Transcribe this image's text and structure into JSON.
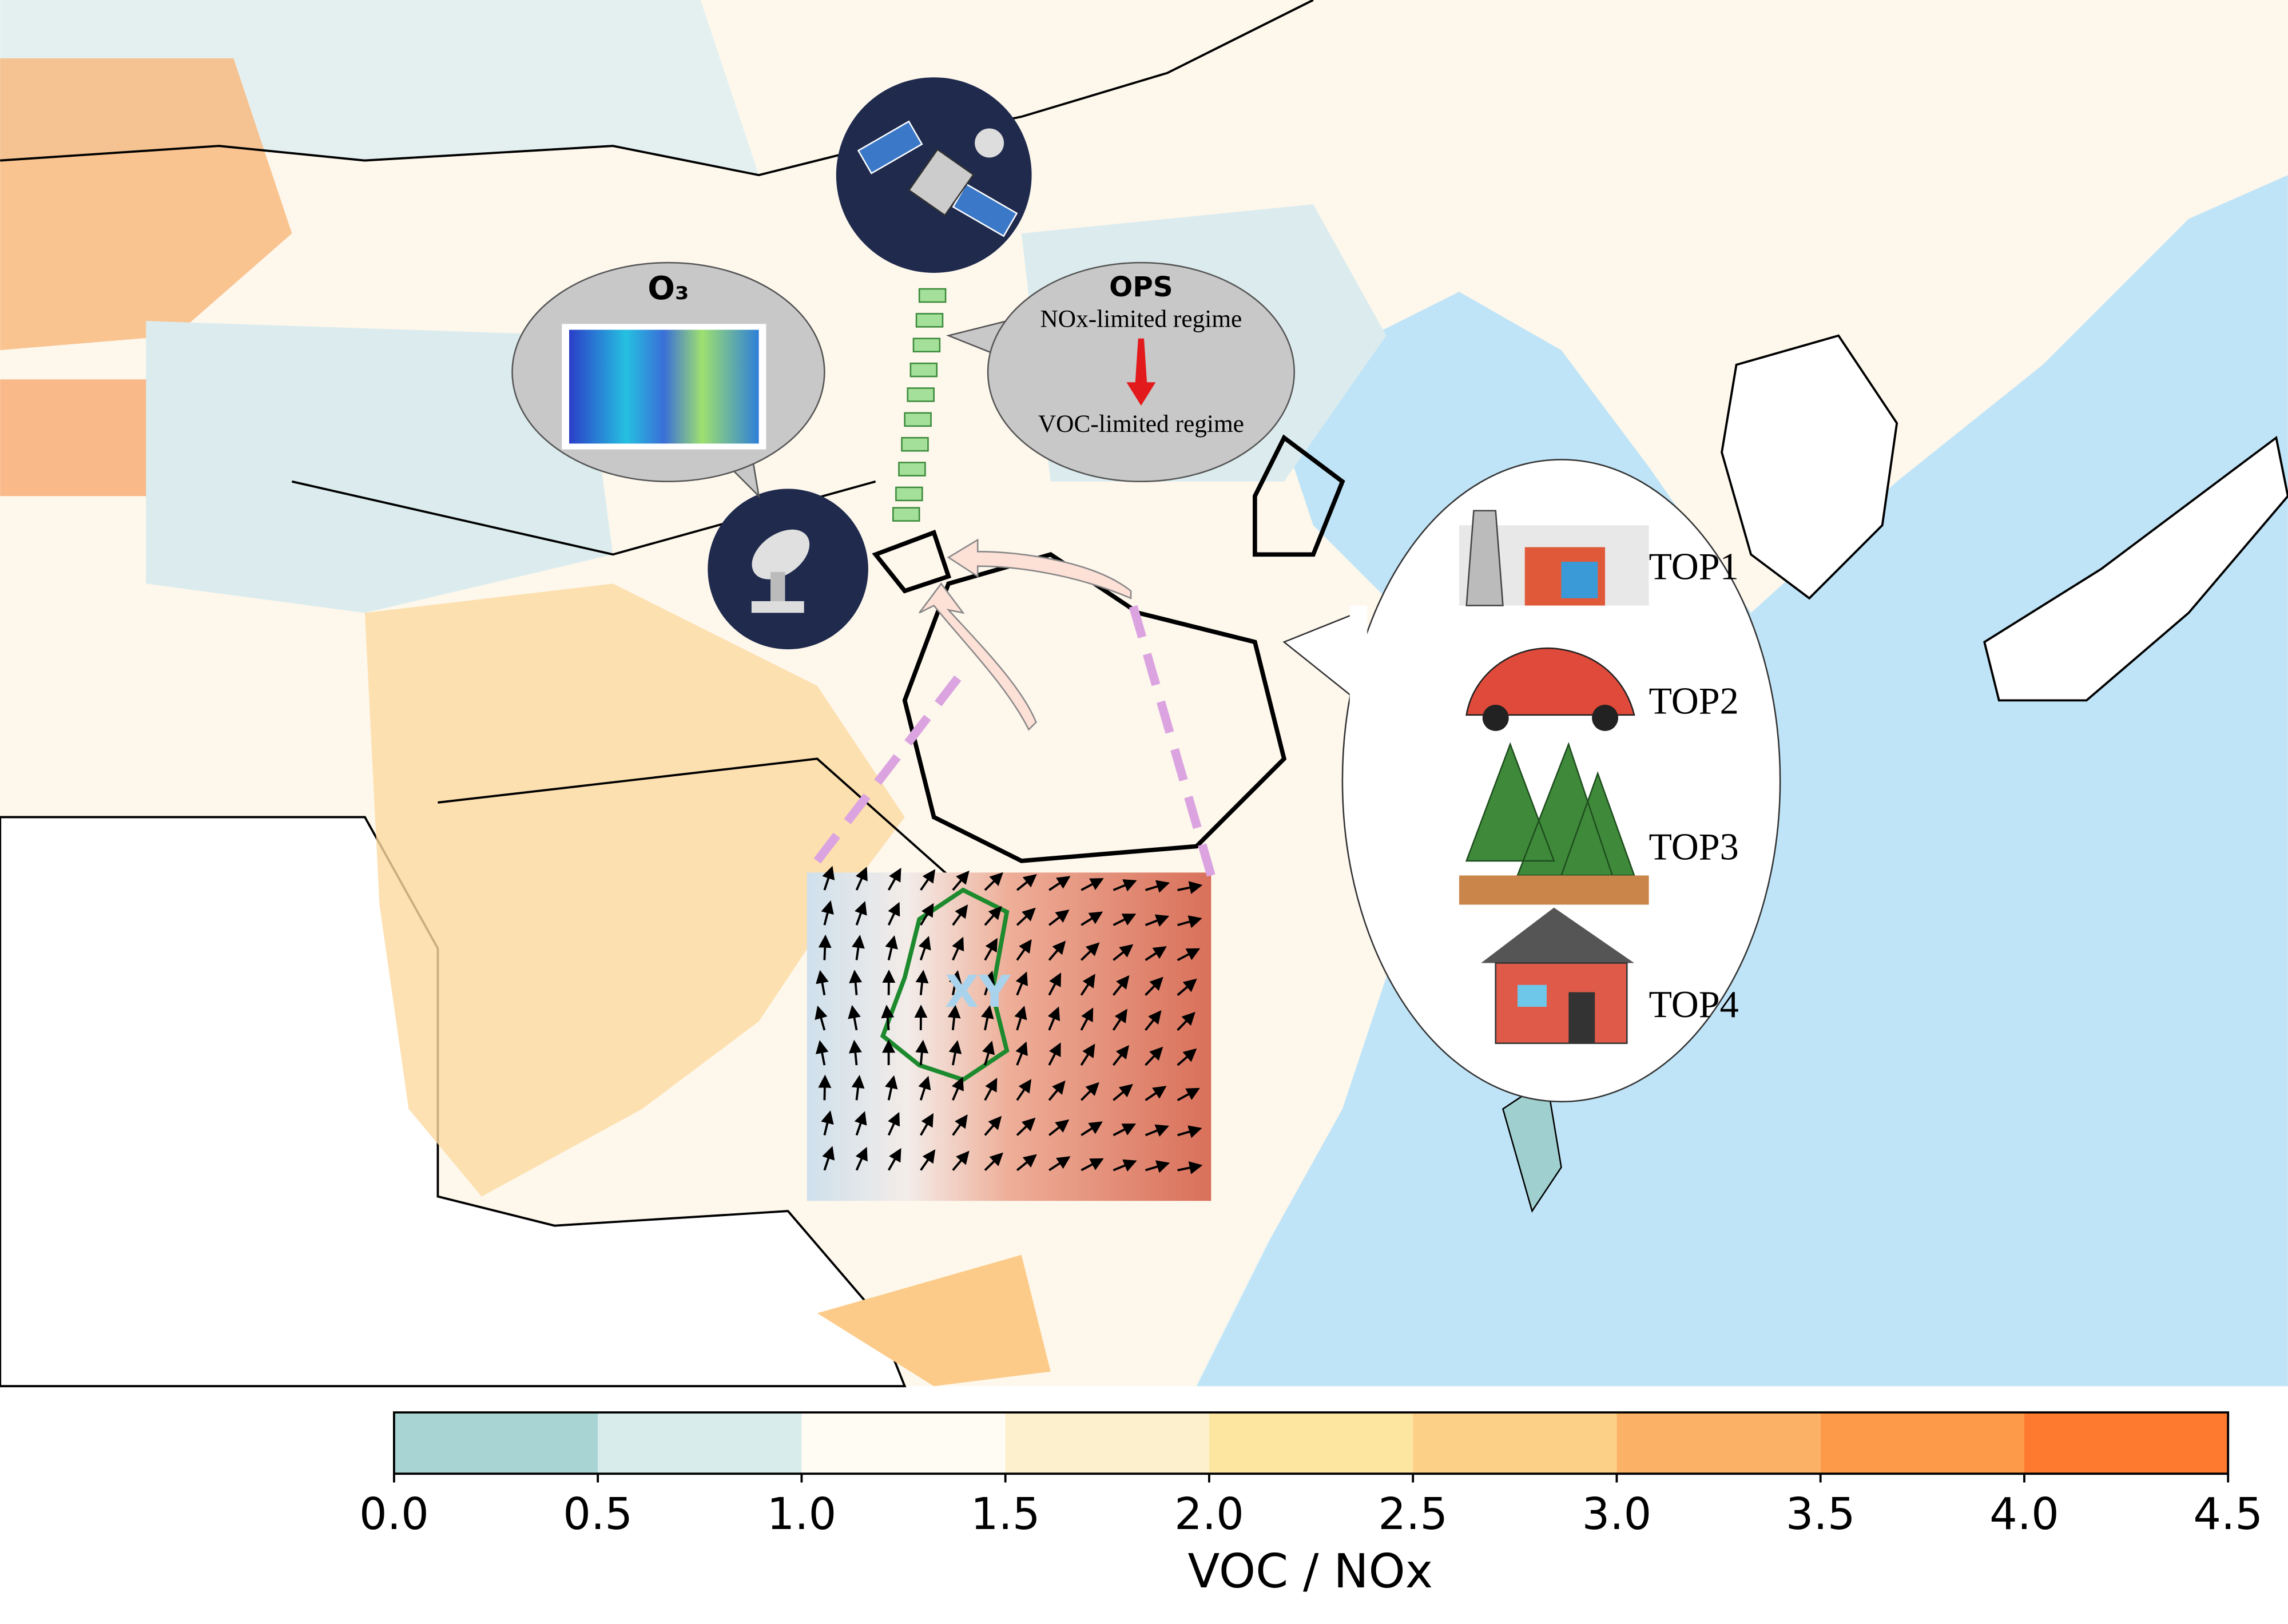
{
  "callouts": {
    "o3": "O₃",
    "ops_title": "OPS",
    "ops_from": "NOx-limited regime",
    "ops_to": "VOC-limited regime",
    "wind_label": "XY"
  },
  "sources": [
    "TOP1",
    "TOP2",
    "TOP3",
    "TOP4"
  ],
  "colorbar": {
    "label": "VOC / NOx",
    "ticks": [
      {
        "value": 0,
        "label": "0.0"
      },
      {
        "value": 0.5,
        "label": "0.5"
      },
      {
        "value": 1,
        "label": "1.0"
      },
      {
        "value": 1.5,
        "label": "1.5"
      },
      {
        "value": 2,
        "label": "2.0"
      },
      {
        "value": 2.5,
        "label": "2.5"
      },
      {
        "value": 3,
        "label": "3.0"
      },
      {
        "value": 3.5,
        "label": "3.5"
      },
      {
        "value": 4,
        "label": "4.0"
      },
      {
        "value": 4.5,
        "label": "4.5"
      }
    ],
    "colors": [
      "#a8d5d3",
      "#d9ecec",
      "#fffcf3",
      "#fdf0cc",
      "#fde6a0",
      "#fdd088",
      "#fcb266",
      "#fc9a4a",
      "#fd7a2e"
    ]
  }
}
